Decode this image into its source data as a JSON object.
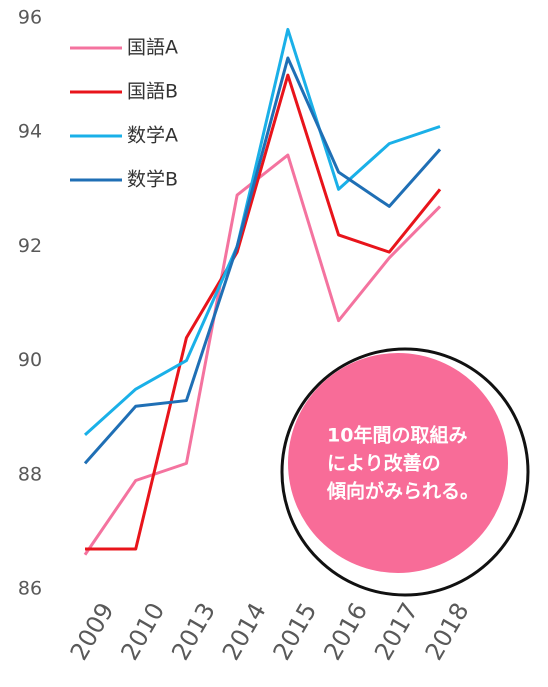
{
  "chart_data": {
    "type": "line",
    "categories": [
      "2009",
      "2010",
      "2013",
      "2014",
      "2015",
      "2016",
      "2017",
      "2018"
    ],
    "series": [
      {
        "name": "国語A",
        "color": "#f4739f",
        "values": [
          86.6,
          87.9,
          88.2,
          92.9,
          93.6,
          90.7,
          91.8,
          92.7
        ]
      },
      {
        "name": "国語B",
        "color": "#e8141b",
        "values": [
          86.7,
          86.7,
          90.4,
          91.9,
          95.0,
          92.2,
          91.9,
          93.0
        ]
      },
      {
        "name": "数学A",
        "color": "#1ab0e8",
        "values": [
          88.7,
          89.5,
          90.0,
          92.0,
          95.8,
          93.0,
          93.8,
          94.1
        ]
      },
      {
        "name": "数学B",
        "color": "#1f6fb5",
        "values": [
          88.2,
          89.2,
          89.3,
          92.0,
          95.3,
          93.3,
          92.7,
          93.7
        ]
      }
    ],
    "ylim": [
      86,
      96
    ],
    "yticks": [
      86,
      88,
      90,
      92,
      94,
      96
    ],
    "grid": false,
    "annotation": [
      "10年間の取組み",
      "により改善の",
      "傾向がみられる。"
    ]
  }
}
